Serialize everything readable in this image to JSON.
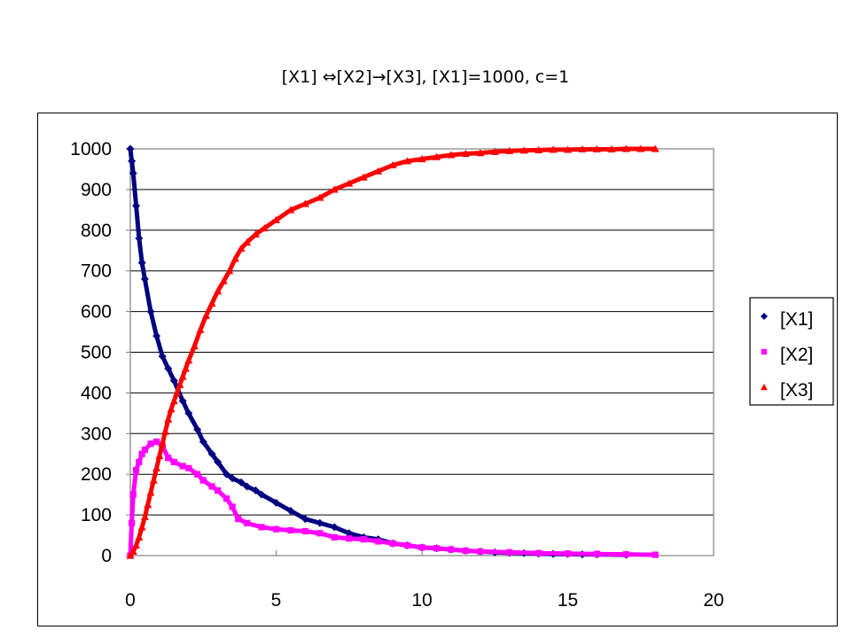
{
  "title": "[X1] ⇔[X2]→[X3], [X1]=1000, c=1",
  "chart_data": {
    "type": "scatter",
    "title": "[X1] ⇔[X2]→[X3], [X1]=1000, c=1",
    "xlabel": "",
    "ylabel": "",
    "xlim": [
      0,
      20
    ],
    "ylim": [
      0,
      1000
    ],
    "x_ticks": [
      "0",
      "5",
      "10",
      "15",
      "20"
    ],
    "y_ticks": [
      "0",
      "100",
      "200",
      "300",
      "400",
      "500",
      "600",
      "700",
      "800",
      "900",
      "1000"
    ],
    "grid": "horizontal",
    "legend": "right",
    "series": [
      {
        "name": "[X1]",
        "color": "#000080",
        "marker": "diamond",
        "x": [
          0,
          0.05,
          0.1,
          0.2,
          0.3,
          0.4,
          0.5,
          0.7,
          0.9,
          1.1,
          1.3,
          1.5,
          1.8,
          2.0,
          2.3,
          2.5,
          2.8,
          3.0,
          3.3,
          3.5,
          3.8,
          4.0,
          4.3,
          4.5,
          5.0,
          5.5,
          6.0,
          6.5,
          7.0,
          7.5,
          8.0,
          8.5,
          9.0,
          9.5,
          10.0,
          10.5,
          11.0,
          11.5,
          12.0,
          12.5,
          13.0,
          13.5,
          14.0,
          14.5,
          15.0,
          15.5,
          16.0,
          17.0
        ],
        "y": [
          1000,
          970,
          940,
          860,
          780,
          720,
          680,
          600,
          540,
          490,
          460,
          430,
          380,
          350,
          310,
          280,
          250,
          230,
          200,
          190,
          180,
          170,
          160,
          150,
          130,
          110,
          90,
          80,
          70,
          55,
          45,
          40,
          30,
          25,
          20,
          18,
          15,
          12,
          10,
          8,
          7,
          6,
          5,
          4,
          4,
          3,
          3,
          2
        ]
      },
      {
        "name": "[X2]",
        "color": "#ff00ff",
        "marker": "square",
        "x": [
          0,
          0.05,
          0.1,
          0.2,
          0.3,
          0.4,
          0.5,
          0.7,
          0.9,
          1.1,
          1.3,
          1.5,
          1.8,
          2.0,
          2.3,
          2.5,
          2.8,
          3.0,
          3.3,
          3.5,
          3.7,
          4.0,
          4.5,
          5.0,
          5.5,
          6.0,
          6.5,
          7.0,
          7.5,
          8.0,
          8.5,
          9.0,
          9.5,
          10.0,
          10.5,
          11.0,
          11.5,
          12.0,
          13.0,
          14.0,
          15.0,
          16.0,
          17.0,
          18.0
        ],
        "y": [
          0,
          80,
          150,
          210,
          230,
          250,
          260,
          275,
          280,
          270,
          240,
          230,
          220,
          215,
          200,
          185,
          170,
          160,
          140,
          120,
          90,
          80,
          70,
          65,
          62,
          60,
          55,
          45,
          42,
          40,
          35,
          30,
          25,
          20,
          18,
          15,
          12,
          10,
          8,
          6,
          5,
          4,
          3,
          2
        ]
      },
      {
        "name": "[X3]",
        "color": "#ff0000",
        "marker": "triangle",
        "x": [
          0,
          0.1,
          0.2,
          0.3,
          0.4,
          0.5,
          0.6,
          0.7,
          0.8,
          0.9,
          1.0,
          1.1,
          1.2,
          1.3,
          1.4,
          1.5,
          1.6,
          1.7,
          1.8,
          1.9,
          2.0,
          2.2,
          2.4,
          2.6,
          2.8,
          3.0,
          3.2,
          3.4,
          3.6,
          3.8,
          4.0,
          4.3,
          4.6,
          5.0,
          5.5,
          6.0,
          6.5,
          7.0,
          7.5,
          8.0,
          8.5,
          9.0,
          9.5,
          10.0,
          10.5,
          11.0,
          11.5,
          12.0,
          12.5,
          13.0,
          13.5,
          14.0,
          14.5,
          15.0,
          15.5,
          16.0,
          16.5,
          17.0,
          17.5,
          18.0
        ],
        "y": [
          0,
          10,
          25,
          45,
          70,
          95,
          125,
          155,
          185,
          215,
          245,
          275,
          305,
          335,
          360,
          380,
          400,
          420,
          440,
          460,
          480,
          515,
          555,
          590,
          620,
          650,
          675,
          700,
          730,
          755,
          770,
          790,
          805,
          825,
          850,
          865,
          880,
          900,
          915,
          930,
          945,
          960,
          970,
          975,
          980,
          985,
          988,
          990,
          993,
          995,
          996,
          997,
          998,
          998,
          999,
          999,
          999,
          1000,
          1000,
          1000
        ]
      }
    ]
  }
}
